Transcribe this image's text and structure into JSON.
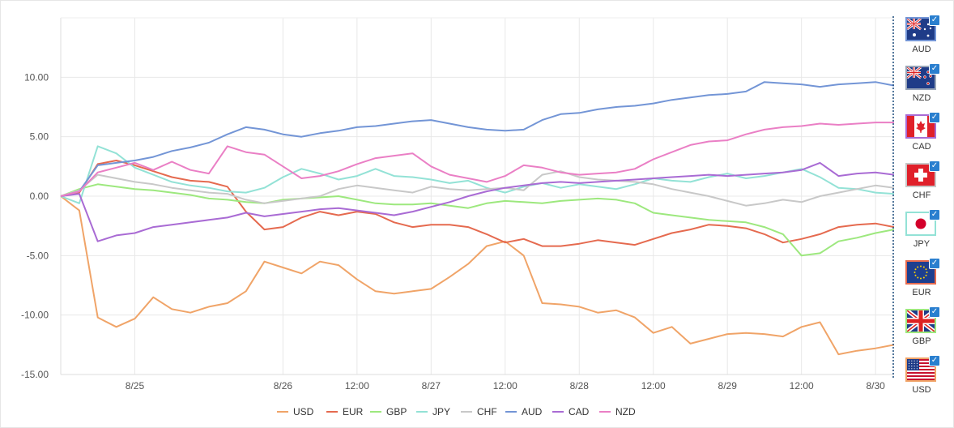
{
  "chart_data": {
    "type": "line",
    "title": "",
    "xlabel": "",
    "ylabel": "",
    "ylim": [
      -15,
      15
    ],
    "y_ticks": [
      10,
      5,
      0,
      -5,
      -10,
      -15
    ],
    "y_tick_labels": [
      "10.00",
      "5.00",
      "0.00",
      "-5.00",
      "-10.00",
      "-15.00"
    ],
    "x_range": [
      "8/24 12:00",
      "8/30 03:00"
    ],
    "x_ticks": [
      {
        "label": "8/25",
        "x": "8/25 00:00"
      },
      {
        "label": "8/26",
        "x": "8/26 00:00"
      },
      {
        "label": "12:00",
        "x": "8/26 12:00"
      },
      {
        "label": "8/27",
        "x": "8/27 00:00"
      },
      {
        "label": "12:00",
        "x": "8/27 12:00"
      },
      {
        "label": "8/28",
        "x": "8/28 00:00"
      },
      {
        "label": "12:00",
        "x": "8/28 12:00"
      },
      {
        "label": "8/29",
        "x": "8/29 00:00"
      },
      {
        "label": "12:00",
        "x": "8/29 12:00"
      },
      {
        "label": "8/30",
        "x": "8/30 00:00"
      }
    ],
    "grid": true,
    "legend_position": "bottom-center",
    "x": [
      "8/24 12:00",
      "8/24 15:00",
      "8/24 18:00",
      "8/24 21:00",
      "8/25 00:00",
      "8/25 03:00",
      "8/25 06:00",
      "8/25 09:00",
      "8/25 12:00",
      "8/25 15:00",
      "8/25 18:00",
      "8/25 21:00",
      "8/26 00:00",
      "8/26 03:00",
      "8/26 06:00",
      "8/26 09:00",
      "8/26 12:00",
      "8/26 15:00",
      "8/26 18:00",
      "8/26 21:00",
      "8/27 00:00",
      "8/27 03:00",
      "8/27 06:00",
      "8/27 09:00",
      "8/27 12:00",
      "8/27 15:00",
      "8/27 18:00",
      "8/27 21:00",
      "8/28 00:00",
      "8/28 03:00",
      "8/28 06:00",
      "8/28 09:00",
      "8/28 12:00",
      "8/28 15:00",
      "8/28 18:00",
      "8/28 21:00",
      "8/29 00:00",
      "8/29 03:00",
      "8/29 06:00",
      "8/29 09:00",
      "8/29 12:00",
      "8/29 15:00",
      "8/29 18:00",
      "8/29 21:00",
      "8/30 00:00",
      "8/30 03:00"
    ],
    "series": [
      {
        "name": "USD",
        "color": "#f0a468",
        "values": [
          0.0,
          -1.2,
          -10.2,
          -11.0,
          -10.3,
          -8.5,
          -9.5,
          -9.8,
          -9.3,
          -9.0,
          -8.0,
          -5.5,
          -6.0,
          -6.5,
          -5.5,
          -5.8,
          -7.0,
          -8.0,
          -8.2,
          -8.0,
          -7.8,
          -6.8,
          -5.7,
          -4.2,
          -3.8,
          -5.0,
          -9.0,
          -9.1,
          -9.3,
          -9.8,
          -9.6,
          -10.2,
          -11.5,
          -11.0,
          -12.4,
          -12.0,
          -11.6,
          -11.5,
          -11.6,
          -11.8,
          -11.0,
          -10.6,
          -13.3,
          -13.0,
          -12.8,
          -12.5
        ]
      },
      {
        "name": "EUR",
        "color": "#e56a4f",
        "values": [
          0.0,
          0.3,
          2.7,
          3.0,
          2.6,
          2.1,
          1.6,
          1.3,
          1.2,
          0.8,
          -1.3,
          -2.8,
          -2.6,
          -1.8,
          -1.3,
          -1.6,
          -1.3,
          -1.5,
          -2.2,
          -2.6,
          -2.4,
          -2.4,
          -2.6,
          -3.2,
          -3.9,
          -3.6,
          -4.2,
          -4.2,
          -4.0,
          -3.7,
          -3.9,
          -4.1,
          -3.6,
          -3.1,
          -2.8,
          -2.4,
          -2.5,
          -2.7,
          -3.2,
          -3.9,
          -3.6,
          -3.2,
          -2.6,
          -2.4,
          -2.3,
          -2.6
        ]
      },
      {
        "name": "GBP",
        "color": "#9de87e",
        "values": [
          0.0,
          0.6,
          1.0,
          0.8,
          0.6,
          0.5,
          0.3,
          0.1,
          -0.2,
          -0.3,
          -0.5,
          -0.6,
          -0.3,
          -0.2,
          -0.1,
          0.0,
          -0.3,
          -0.6,
          -0.7,
          -0.7,
          -0.6,
          -0.8,
          -1.0,
          -0.6,
          -0.4,
          -0.5,
          -0.6,
          -0.4,
          -0.3,
          -0.2,
          -0.3,
          -0.6,
          -1.4,
          -1.6,
          -1.8,
          -2.0,
          -2.1,
          -2.2,
          -2.6,
          -3.2,
          -5.0,
          -4.8,
          -3.8,
          -3.5,
          -3.1,
          -2.8
        ]
      },
      {
        "name": "JPY",
        "color": "#93e2d6",
        "values": [
          0.0,
          -0.6,
          4.2,
          3.6,
          2.4,
          1.8,
          1.2,
          0.9,
          0.7,
          0.4,
          0.3,
          0.7,
          1.6,
          2.3,
          1.9,
          1.4,
          1.7,
          2.3,
          1.7,
          1.6,
          1.4,
          1.1,
          1.3,
          0.7,
          0.3,
          0.8,
          1.1,
          0.7,
          1.0,
          0.8,
          0.6,
          1.0,
          1.5,
          1.3,
          1.2,
          1.6,
          1.9,
          1.5,
          1.7,
          2.0,
          2.3,
          1.6,
          0.7,
          0.6,
          0.3,
          0.2
        ]
      },
      {
        "name": "CHF",
        "color": "#c8c8c8",
        "values": [
          0.0,
          0.5,
          1.8,
          1.5,
          1.2,
          1.0,
          0.7,
          0.5,
          0.3,
          0.2,
          -0.3,
          -0.6,
          -0.4,
          -0.2,
          0.0,
          0.6,
          0.9,
          0.7,
          0.5,
          0.3,
          0.8,
          0.6,
          0.5,
          0.6,
          0.7,
          0.5,
          1.8,
          2.1,
          1.6,
          1.4,
          1.3,
          1.2,
          1.0,
          0.6,
          0.3,
          0.0,
          -0.4,
          -0.8,
          -0.6,
          -0.3,
          -0.5,
          0.0,
          0.3,
          0.6,
          0.9,
          0.7
        ]
      },
      {
        "name": "AUD",
        "color": "#7395d6",
        "values": [
          0.0,
          0.4,
          2.6,
          2.8,
          3.0,
          3.3,
          3.8,
          4.1,
          4.5,
          5.2,
          5.8,
          5.6,
          5.2,
          5.0,
          5.3,
          5.5,
          5.8,
          5.9,
          6.1,
          6.3,
          6.4,
          6.1,
          5.8,
          5.6,
          5.5,
          5.6,
          6.4,
          6.9,
          7.0,
          7.3,
          7.5,
          7.6,
          7.8,
          8.1,
          8.3,
          8.5,
          8.6,
          8.8,
          9.6,
          9.5,
          9.4,
          9.2,
          9.4,
          9.5,
          9.6,
          9.3
        ]
      },
      {
        "name": "CAD",
        "color": "#a96bd4",
        "values": [
          0.0,
          0.2,
          -3.8,
          -3.3,
          -3.1,
          -2.6,
          -2.4,
          -2.2,
          -2.0,
          -1.8,
          -1.4,
          -1.7,
          -1.5,
          -1.3,
          -1.1,
          -1.0,
          -1.2,
          -1.4,
          -1.6,
          -1.3,
          -0.9,
          -0.5,
          0.0,
          0.4,
          0.7,
          0.9,
          1.1,
          1.2,
          1.1,
          1.2,
          1.3,
          1.4,
          1.5,
          1.6,
          1.7,
          1.8,
          1.7,
          1.8,
          1.9,
          2.0,
          2.2,
          2.8,
          1.7,
          1.9,
          2.0,
          1.8
        ]
      },
      {
        "name": "NZD",
        "color": "#ea7fc5",
        "values": [
          0.0,
          0.4,
          2.0,
          2.4,
          2.8,
          2.2,
          2.9,
          2.2,
          1.9,
          4.2,
          3.7,
          3.5,
          2.5,
          1.5,
          1.7,
          2.1,
          2.7,
          3.2,
          3.4,
          3.6,
          2.5,
          1.8,
          1.5,
          1.2,
          1.7,
          2.6,
          2.4,
          2.0,
          1.8,
          1.9,
          2.0,
          2.3,
          3.1,
          3.7,
          4.3,
          4.6,
          4.7,
          5.2,
          5.6,
          5.8,
          5.9,
          6.1,
          6.0,
          6.1,
          6.2,
          6.2
        ]
      }
    ]
  },
  "legend": [
    {
      "label": "USD",
      "color": "#f0a468"
    },
    {
      "label": "EUR",
      "color": "#e56a4f"
    },
    {
      "label": "GBP",
      "color": "#9de87e"
    },
    {
      "label": "JPY",
      "color": "#93e2d6"
    },
    {
      "label": "CHF",
      "color": "#c8c8c8"
    },
    {
      "label": "AUD",
      "color": "#7395d6"
    },
    {
      "label": "CAD",
      "color": "#a96bd4"
    },
    {
      "label": "NZD",
      "color": "#ea7fc5"
    }
  ],
  "panel": {
    "currencies": [
      {
        "label": "AUD",
        "flag": "australia-flag-icon",
        "border": "#7395d6",
        "checked": true
      },
      {
        "label": "NZD",
        "flag": "new-zealand-flag-icon",
        "border": "#9aa6b8",
        "checked": true
      },
      {
        "label": "CAD",
        "flag": "canada-flag-icon",
        "border": "#a96bd4",
        "checked": true
      },
      {
        "label": "CHF",
        "flag": "switzerland-flag-icon",
        "border": "#c8c8c8",
        "checked": true
      },
      {
        "label": "JPY",
        "flag": "japan-flag-icon",
        "border": "#93e2d6",
        "checked": true
      },
      {
        "label": "EUR",
        "flag": "eu-flag-icon",
        "border": "#e56a4f",
        "checked": true
      },
      {
        "label": "GBP",
        "flag": "uk-flag-icon",
        "border": "#9de87e",
        "checked": true
      },
      {
        "label": "USD",
        "flag": "usa-flag-icon",
        "border": "#f0a468",
        "checked": true
      }
    ]
  }
}
